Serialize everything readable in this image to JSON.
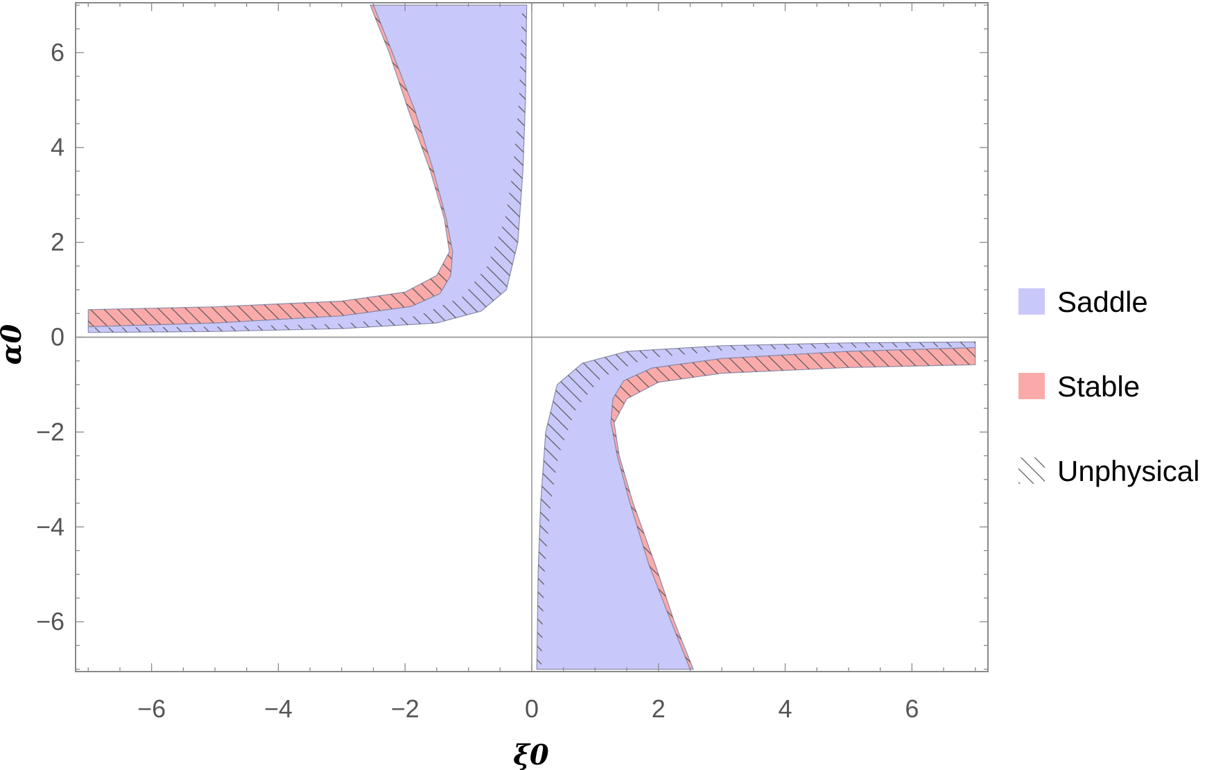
{
  "chart_data": {
    "type": "area",
    "title": "",
    "xlabel": "ξ0",
    "ylabel": "α0",
    "xlim": [
      -7.2,
      7.2
    ],
    "ylim": [
      -7.05,
      7.05
    ],
    "xticks": [
      -6,
      -4,
      -2,
      0,
      2,
      4,
      6
    ],
    "yticks": [
      -6,
      -4,
      -2,
      0,
      2,
      4,
      6
    ],
    "tick_labels": {
      "x": [
        "−6",
        "−4",
        "−2",
        "0",
        "2",
        "4",
        "6"
      ],
      "y": [
        "−6",
        "−4",
        "−2",
        "0",
        "2",
        "4",
        "6"
      ]
    },
    "grid": false,
    "legend_position": "right",
    "legend": [
      {
        "label": "Saddle",
        "swatch": "fill",
        "color": "#c8c8fa"
      },
      {
        "label": "Stable",
        "swatch": "fill",
        "color": "#fbaaaa"
      },
      {
        "label": "Unphysical",
        "swatch": "hatch",
        "color": "#555555"
      }
    ],
    "series": [
      {
        "name": "Saddle",
        "color": "#c8c8fa",
        "regions": [
          {
            "outer": [
              [
                -2.5,
                7
              ],
              [
                -2.2,
                6.0
              ],
              [
                -1.85,
                4.8
              ],
              [
                -1.55,
                3.5
              ],
              [
                -1.35,
                2.5
              ],
              [
                -1.25,
                1.8
              ],
              [
                -1.28,
                1.3
              ],
              [
                -1.45,
                0.92
              ],
              [
                -1.9,
                0.65
              ],
              [
                -3,
                0.45
              ],
              [
                -5,
                0.3
              ],
              [
                -7,
                0.22
              ]
            ],
            "inner": [
              [
                -7,
                0.1
              ],
              [
                -5,
                0.12
              ],
              [
                -3,
                0.18
              ],
              [
                -1.5,
                0.3
              ],
              [
                -0.8,
                0.55
              ],
              [
                -0.4,
                1.0
              ],
              [
                -0.22,
                2.0
              ],
              [
                -0.14,
                3.5
              ],
              [
                -0.1,
                5.0
              ],
              [
                -0.08,
                7
              ]
            ]
          },
          {
            "outer": [
              [
                2.5,
                -7
              ],
              [
                2.2,
                -6.0
              ],
              [
                1.85,
                -4.8
              ],
              [
                1.55,
                -3.5
              ],
              [
                1.35,
                -2.5
              ],
              [
                1.25,
                -1.8
              ],
              [
                1.28,
                -1.3
              ],
              [
                1.45,
                -0.92
              ],
              [
                1.9,
                -0.65
              ],
              [
                3,
                -0.45
              ],
              [
                5,
                -0.3
              ],
              [
                7,
                -0.22
              ]
            ],
            "inner": [
              [
                7,
                -0.1
              ],
              [
                5,
                -0.12
              ],
              [
                3,
                -0.18
              ],
              [
                1.5,
                -0.3
              ],
              [
                0.8,
                -0.55
              ],
              [
                0.4,
                -1.0
              ],
              [
                0.22,
                -2.0
              ],
              [
                0.14,
                -3.5
              ],
              [
                0.1,
                -5.0
              ],
              [
                0.08,
                -7
              ]
            ]
          }
        ]
      },
      {
        "name": "Stable",
        "color": "#fbaaaa",
        "regions": [
          {
            "outer": [
              [
                -7,
                0.58
              ],
              [
                -5,
                0.64
              ],
              [
                -3,
                0.76
              ],
              [
                -2,
                0.95
              ],
              [
                -1.5,
                1.3
              ],
              [
                -1.3,
                1.8
              ],
              [
                -1.38,
                2.5
              ],
              [
                -1.6,
                3.5
              ],
              [
                -1.95,
                4.8
              ],
              [
                -2.25,
                6.0
              ],
              [
                -2.55,
                7
              ]
            ],
            "inner": [
              [
                -2.5,
                7
              ],
              [
                -2.2,
                6.0
              ],
              [
                -1.85,
                4.8
              ],
              [
                -1.55,
                3.5
              ],
              [
                -1.35,
                2.5
              ],
              [
                -1.25,
                1.8
              ],
              [
                -1.28,
                1.3
              ],
              [
                -1.45,
                0.92
              ],
              [
                -1.9,
                0.65
              ],
              [
                -3,
                0.45
              ],
              [
                -5,
                0.3
              ],
              [
                -7,
                0.22
              ]
            ]
          },
          {
            "outer": [
              [
                7,
                -0.58
              ],
              [
                5,
                -0.64
              ],
              [
                3,
                -0.76
              ],
              [
                2,
                -0.95
              ],
              [
                1.5,
                -1.3
              ],
              [
                1.3,
                -1.8
              ],
              [
                1.38,
                -2.5
              ],
              [
                1.6,
                -3.5
              ],
              [
                1.95,
                -4.8
              ],
              [
                2.25,
                -6.0
              ],
              [
                2.55,
                -7
              ]
            ],
            "inner": [
              [
                2.5,
                -7
              ],
              [
                2.2,
                -6.0
              ],
              [
                1.85,
                -4.8
              ],
              [
                1.55,
                -3.5
              ],
              [
                1.35,
                -2.5
              ],
              [
                1.25,
                -1.8
              ],
              [
                1.28,
                -1.3
              ],
              [
                1.45,
                -0.92
              ],
              [
                1.9,
                -0.65
              ],
              [
                3,
                -0.45
              ],
              [
                5,
                -0.3
              ],
              [
                7,
                -0.22
              ]
            ]
          }
        ]
      },
      {
        "name": "Unphysical",
        "color": "#555555",
        "regions": [
          {
            "outer": [
              [
                -7,
                0.58
              ],
              [
                -5,
                0.64
              ],
              [
                -3,
                0.76
              ],
              [
                -2,
                0.95
              ],
              [
                -1.5,
                1.3
              ],
              [
                -1.3,
                1.8
              ],
              [
                -1.38,
                2.5
              ],
              [
                -1.6,
                3.5
              ],
              [
                -1.95,
                4.8
              ],
              [
                -2.25,
                6.0
              ],
              [
                -2.55,
                7
              ]
            ],
            "inner": [
              [
                -2.5,
                7
              ],
              [
                -2.2,
                6.0
              ],
              [
                -1.85,
                4.8
              ],
              [
                -1.55,
                3.5
              ],
              [
                -1.35,
                2.5
              ],
              [
                -1.25,
                1.8
              ],
              [
                -1.28,
                1.3
              ],
              [
                -1.45,
                0.92
              ],
              [
                -1.9,
                0.65
              ],
              [
                -3,
                0.45
              ],
              [
                -5,
                0.3
              ],
              [
                -7,
                0.22
              ]
            ]
          },
          {
            "outer": [
              [
                -7,
                0.2
              ],
              [
                -5,
                0.22
              ],
              [
                -3,
                0.28
              ],
              [
                -1.8,
                0.45
              ],
              [
                -1.1,
                0.85
              ],
              [
                -0.7,
                1.5
              ],
              [
                -0.42,
                2.5
              ],
              [
                -0.3,
                3.5
              ],
              [
                -0.2,
                5.0
              ],
              [
                -0.15,
                7
              ]
            ],
            "inner": [
              [
                -0.08,
                7
              ],
              [
                -0.1,
                5.0
              ],
              [
                -0.14,
                3.5
              ],
              [
                -0.22,
                2.0
              ],
              [
                -0.4,
                1.0
              ],
              [
                -0.8,
                0.55
              ],
              [
                -1.5,
                0.3
              ],
              [
                -3,
                0.18
              ],
              [
                -5,
                0.12
              ],
              [
                -7,
                0.1
              ]
            ]
          },
          {
            "outer": [
              [
                7,
                -0.58
              ],
              [
                5,
                -0.64
              ],
              [
                3,
                -0.76
              ],
              [
                2,
                -0.95
              ],
              [
                1.5,
                -1.3
              ],
              [
                1.3,
                -1.8
              ],
              [
                1.38,
                -2.5
              ],
              [
                1.6,
                -3.5
              ],
              [
                1.95,
                -4.8
              ],
              [
                2.25,
                -6.0
              ],
              [
                2.55,
                -7
              ]
            ],
            "inner": [
              [
                2.5,
                -7
              ],
              [
                2.2,
                -6.0
              ],
              [
                1.85,
                -4.8
              ],
              [
                1.55,
                -3.5
              ],
              [
                1.35,
                -2.5
              ],
              [
                1.25,
                -1.8
              ],
              [
                1.28,
                -1.3
              ],
              [
                1.45,
                -0.92
              ],
              [
                1.9,
                -0.65
              ],
              [
                3,
                -0.45
              ],
              [
                5,
                -0.3
              ],
              [
                7,
                -0.22
              ]
            ]
          },
          {
            "outer": [
              [
                7,
                -0.2
              ],
              [
                5,
                -0.22
              ],
              [
                3,
                -0.28
              ],
              [
                1.8,
                -0.45
              ],
              [
                1.1,
                -0.85
              ],
              [
                0.7,
                -1.5
              ],
              [
                0.42,
                -2.5
              ],
              [
                0.3,
                -3.5
              ],
              [
                0.2,
                -5.0
              ],
              [
                0.15,
                -7
              ]
            ],
            "inner": [
              [
                0.08,
                -7
              ],
              [
                0.1,
                -5.0
              ],
              [
                0.14,
                -3.5
              ],
              [
                0.22,
                -2.0
              ],
              [
                0.4,
                -1.0
              ],
              [
                0.8,
                -0.55
              ],
              [
                1.5,
                -0.3
              ],
              [
                3,
                -0.18
              ],
              [
                5,
                -0.12
              ],
              [
                7,
                -0.1
              ]
            ]
          }
        ]
      }
    ]
  }
}
